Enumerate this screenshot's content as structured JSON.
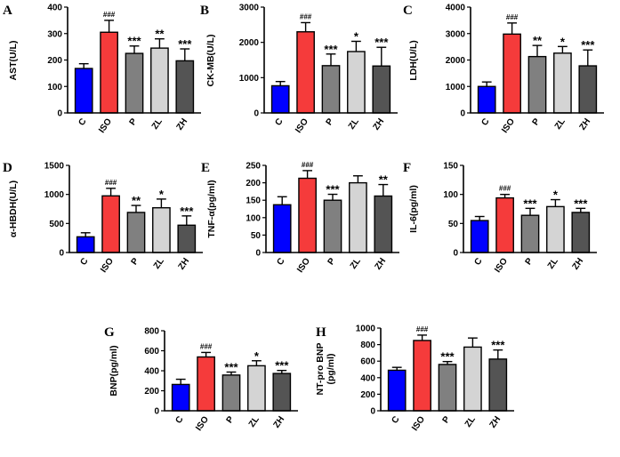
{
  "chart_data": [
    {
      "type": "bar",
      "panel_label": "A",
      "ylabel": "AST(U/L)",
      "categories": [
        "C",
        "ISO",
        "P",
        "ZL",
        "ZH"
      ],
      "values": [
        168,
        305,
        225,
        245,
        197
      ],
      "errors": [
        18,
        45,
        28,
        35,
        45
      ],
      "significance": [
        "",
        "###",
        "***",
        "**",
        "***"
      ],
      "ylim": [
        0,
        400
      ],
      "yticks": [
        "0",
        "100",
        "200",
        "300",
        "400"
      ]
    },
    {
      "type": "bar",
      "panel_label": "B",
      "ylabel": "CK-MB(U/L)",
      "categories": [
        "C",
        "ISO",
        "P",
        "ZL",
        "ZH"
      ],
      "values": [
        770,
        2300,
        1340,
        1740,
        1330
      ],
      "errors": [
        120,
        260,
        330,
        290,
        530
      ],
      "significance": [
        "",
        "###",
        "***",
        "*",
        "***"
      ],
      "ylim": [
        0,
        3000
      ],
      "yticks": [
        "0",
        "1000",
        "2000",
        "3000"
      ]
    },
    {
      "type": "bar",
      "panel_label": "C",
      "ylabel": "LDH(U/L)",
      "categories": [
        "C",
        "ISO",
        "P",
        "ZL",
        "ZH"
      ],
      "values": [
        1000,
        2980,
        2130,
        2260,
        1780
      ],
      "errors": [
        170,
        420,
        420,
        250,
        600
      ],
      "significance": [
        "",
        "###",
        "**",
        "*",
        "***"
      ],
      "ylim": [
        0,
        4000
      ],
      "yticks": [
        "0",
        "1000",
        "2000",
        "3000",
        "4000"
      ]
    },
    {
      "type": "bar",
      "panel_label": "D",
      "ylabel": "α-HBDH(U/L)",
      "categories": [
        "C",
        "ISO",
        "P",
        "ZL",
        "ZH"
      ],
      "values": [
        270,
        975,
        690,
        770,
        470
      ],
      "errors": [
        70,
        130,
        120,
        150,
        160
      ],
      "significance": [
        "",
        "###",
        "**",
        "*",
        "***"
      ],
      "ylim": [
        0,
        1500
      ],
      "yticks": [
        "0",
        "500",
        "1000",
        "1500"
      ]
    },
    {
      "type": "bar",
      "panel_label": "E",
      "ylabel": "TNF-α(pg/ml)",
      "categories": [
        "C",
        "ISO",
        "P",
        "ZL",
        "ZH"
      ],
      "values": [
        137,
        213,
        150,
        200,
        162
      ],
      "errors": [
        23,
        22,
        17,
        20,
        33
      ],
      "significance": [
        "",
        "###",
        "***",
        "",
        "**"
      ],
      "ylim": [
        0,
        250
      ],
      "yticks": [
        "0",
        "50",
        "100",
        "150",
        "200",
        "250"
      ]
    },
    {
      "type": "bar",
      "panel_label": "F",
      "ylabel": "IL-6(pg/ml)",
      "categories": [
        "C",
        "ISO",
        "P",
        "ZL",
        "ZH"
      ],
      "values": [
        55,
        94,
        64,
        79,
        69
      ],
      "errors": [
        7,
        6,
        12,
        12,
        7
      ],
      "significance": [
        "",
        "###",
        "***",
        "*",
        "***"
      ],
      "ylim": [
        0,
        150
      ],
      "yticks": [
        "0",
        "50",
        "100",
        "150"
      ]
    },
    {
      "type": "bar",
      "panel_label": "G",
      "ylabel": "BNP(pg/ml)",
      "categories": [
        "C",
        "ISO",
        "P",
        "ZL",
        "ZH"
      ],
      "values": [
        263,
        538,
        357,
        450,
        373
      ],
      "errors": [
        52,
        45,
        30,
        50,
        30
      ],
      "significance": [
        "",
        "###",
        "***",
        "*",
        "***"
      ],
      "ylim": [
        0,
        800
      ],
      "yticks": [
        "0",
        "200",
        "400",
        "600",
        "800"
      ]
    },
    {
      "type": "bar",
      "panel_label": "H",
      "ylabel": "NT-pro BNP",
      "ylabel2": "(pg/ml)",
      "categories": [
        "C",
        "ISO",
        "P",
        "ZL",
        "ZH"
      ],
      "values": [
        490,
        850,
        560,
        770,
        625
      ],
      "errors": [
        35,
        65,
        35,
        110,
        110
      ],
      "significance": [
        "",
        "###",
        "***",
        "",
        "***"
      ],
      "ylim": [
        0,
        1000
      ],
      "yticks": [
        "0",
        "200",
        "400",
        "600",
        "800",
        "1000"
      ]
    }
  ],
  "colors": {
    "bar_fills": [
      "#0000ff",
      "#f53b3b",
      "#808080",
      "#d4d4d4",
      "#545454"
    ]
  }
}
